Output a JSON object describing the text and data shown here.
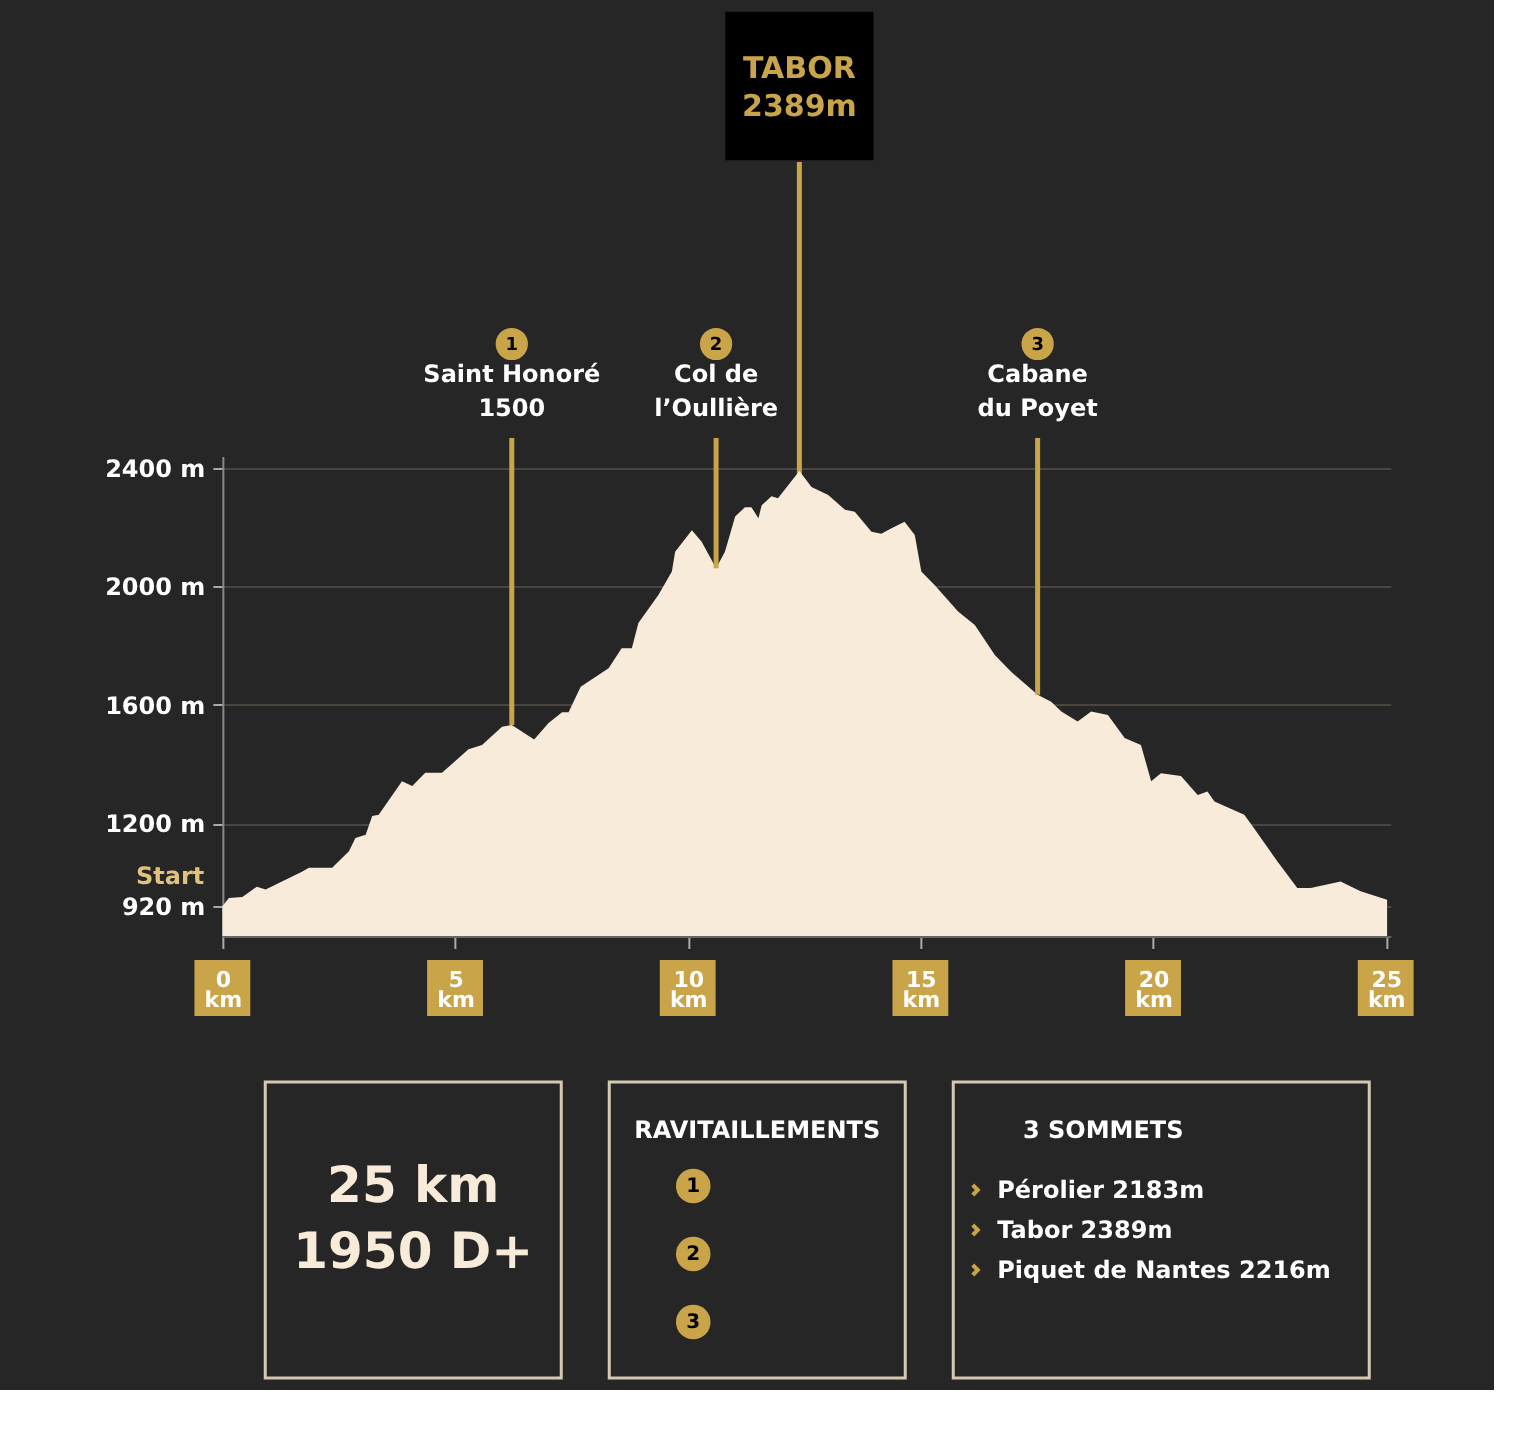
{
  "chart_data": [
    {
      "type": "area",
      "x": [
        0,
        0.14,
        0.43,
        0.74,
        0.93,
        1.72,
        1.86,
        2.36,
        2.72,
        2.86,
        3.08,
        3.22,
        3.36,
        3.86,
        4.08,
        4.36,
        4.72,
        5.29,
        5.58,
        6.01,
        6.22,
        6.7,
        7.01,
        7.3,
        7.44,
        7.7,
        8.3,
        8.58,
        8.8,
        8.94,
        9.37,
        9.66,
        9.73,
        10.09,
        10.3,
        10.61,
        10.8,
        11.02,
        11.23,
        11.37,
        11.52,
        11.59,
        11.8,
        11.94,
        12.4,
        12.66,
        13.02,
        13.38,
        13.59,
        13.95,
        14.16,
        14.38,
        14.66,
        14.88,
        15.02,
        15.31,
        15.81,
        16.17,
        16.6,
        16.95,
        17.52,
        17.81,
        18.03,
        18.38,
        18.67,
        19.03,
        19.39,
        19.74,
        19.96,
        20.17,
        20.6,
        20.96,
        21.17,
        21.32,
        21.96,
        22.17,
        22.67,
        23.1,
        23.39,
        24.03,
        24.46,
        25.03
      ],
      "series": [
        {
          "color": "#f8ebd9",
          "values": [
            920,
            948,
            952,
            986,
            977,
            1038,
            1050,
            1050,
            1106,
            1151,
            1162,
            1225,
            1229,
            1342,
            1326,
            1371,
            1371,
            1450,
            1465,
            1526,
            1532,
            1483,
            1539,
            1575,
            1575,
            1661,
            1724,
            1791,
            1791,
            1876,
            1971,
            2050,
            2117,
            2189,
            2151,
            2061,
            2117,
            2236,
            2267,
            2267,
            2230,
            2274,
            2304,
            2297,
            2389,
            2335,
            2308,
            2259,
            2252,
            2184,
            2178,
            2196,
            2218,
            2173,
            2050,
            2004,
            1915,
            1870,
            1768,
            1712,
            1634,
            1611,
            1578,
            1544,
            1578,
            1566,
            1488,
            1465,
            1342,
            1369,
            1360,
            1296,
            1308,
            1274,
            1229,
            1184,
            1072,
            982,
            982,
            1004,
            971,
            942
          ]
        }
      ],
      "xlim": [
        0,
        25.1
      ],
      "ylim": [
        820,
        2440
      ],
      "xticks": [
        {
          "value": 0,
          "label": "0 km"
        },
        {
          "value": 5,
          "label": "5 km"
        },
        {
          "value": 10,
          "label": "10 km"
        },
        {
          "value": 15,
          "label": "15 km"
        },
        {
          "value": 20,
          "label": "20 km"
        },
        {
          "value": 25,
          "label": "25 km"
        }
      ],
      "yticks": [
        {
          "value": 920,
          "label": "920 m"
        },
        {
          "value": 1200,
          "label": "1200 m"
        },
        {
          "value": 1600,
          "label": "1600 m"
        },
        {
          "value": 2000,
          "label": "2000 m"
        },
        {
          "value": 2400,
          "label": "2400 m"
        }
      ],
      "grid": "y",
      "ref_lines": [
        {
          "axis": "x",
          "value": 12.4,
          "label": "TABOR\n2389m",
          "color": "#c9a449"
        }
      ],
      "annotations": [
        {
          "text": "1\nSaint Honoré\n1500",
          "x": 6.22,
          "y": 1532
        },
        {
          "text": "2\nCol de\nl’Oullière",
          "x": 10.61,
          "y": 2061
        },
        {
          "text": "3\nCabane\ndu Poyet",
          "x": 17.52,
          "y": 1634
        },
        "Start"
      ]
    },
    {
      "type": "other",
      "annotations": [
        "25 km",
        "1950 D+"
      ]
    },
    {
      "type": "other",
      "title": "RAVITAILLEMENTS",
      "annotations": [
        "1",
        "2",
        "3"
      ]
    },
    {
      "type": "other",
      "title": "3 SOMMETS",
      "annotations": [
        "Pérolier 2183m",
        "Tabor 2389m",
        "Piquet de Nantes 2216m"
      ]
    }
  ]
}
